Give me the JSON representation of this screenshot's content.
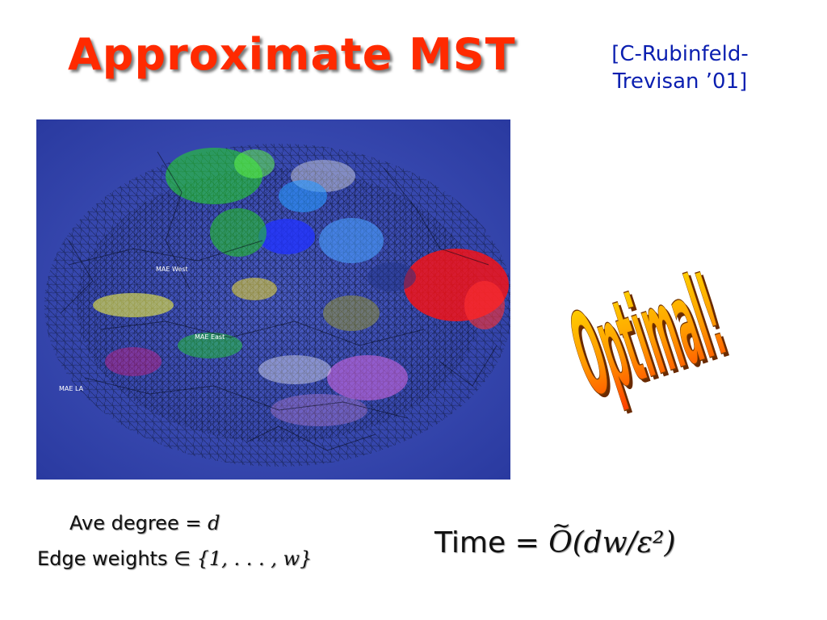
{
  "slide": {
    "title": "Approximate MST",
    "citation_line1": "[C-Rubinfeld-",
    "citation_line2": "Trevisan ’01]",
    "image": {
      "labels": [
        "MAE West",
        "MAE East",
        "MAE LA"
      ]
    },
    "optimal_text": "Optimal!",
    "left_formula": {
      "line1_text": "Ave degree",
      "line1_op": "=",
      "line1_var": "d",
      "line2_text": "Edge weights",
      "line2_op": "∈",
      "line2_set": "{1, . . . , w}"
    },
    "right_formula": {
      "word": "Time",
      "op": "=",
      "bigO": "O",
      "tilde": "~",
      "expression": "(dw/ε²)"
    },
    "colors": {
      "title": "#ff2a00",
      "citation": "#0b1fb0",
      "image_background": "#3444a8",
      "optimal_fill_top": "#ffd000",
      "optimal_fill_bottom": "#ff3300"
    }
  }
}
